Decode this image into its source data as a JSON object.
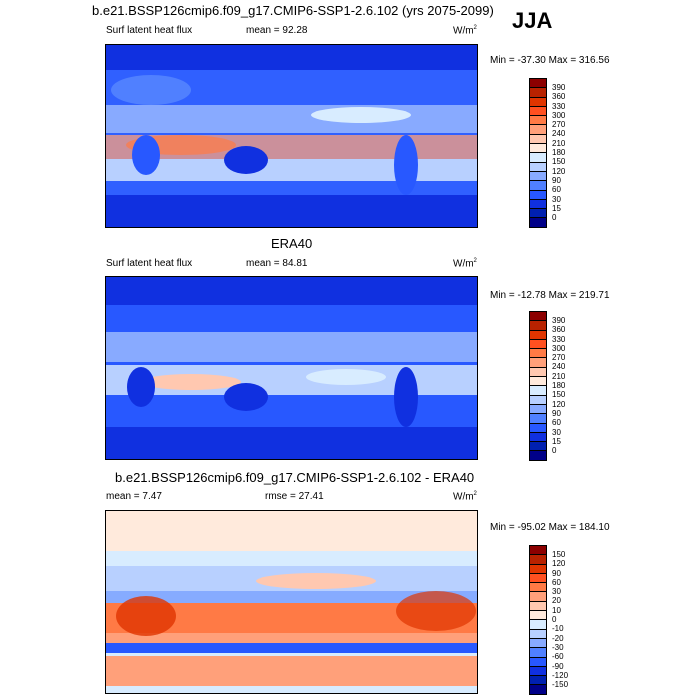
{
  "header": {
    "title": "b.e21.BSSP126cmip6.f09_g17.CMIP6-SSP1-2.6.102 (yrs 2075-2099)",
    "season": "JJA"
  },
  "panels": [
    {
      "title": "",
      "variable": "Surf latent heat flux",
      "stat": "mean =  92.28",
      "units": "W/m",
      "units_sup": "2",
      "minmax": "Min = -37.30 Max = 316.56",
      "scale": "abs"
    },
    {
      "title": "ERA40",
      "variable": "Surf latent heat flux",
      "stat": "mean =  84.81",
      "units": "W/m",
      "units_sup": "2",
      "minmax": "Min = -12.78 Max = 219.71",
      "scale": "abs"
    },
    {
      "title": "b.e21.BSSP126cmip6.f09_g17.CMIP6-SSP1-2.6.102 - ERA40",
      "variable": "mean =  7.47",
      "stat": "rmse =  27.41",
      "units": "W/m",
      "units_sup": "2",
      "minmax": "Min = -95.02 Max = 184.10",
      "scale": "diff"
    }
  ],
  "colorbars": {
    "abs": {
      "labels": [
        "390",
        "360",
        "330",
        "300",
        "270",
        "240",
        "210",
        "180",
        "150",
        "120",
        "90",
        "60",
        "30",
        "15",
        "0"
      ]
    },
    "diff": {
      "labels": [
        "150",
        "120",
        "90",
        "60",
        "30",
        "20",
        "10",
        "0",
        "-10",
        "-20",
        "-30",
        "-60",
        "-90",
        "-120",
        "-150"
      ]
    },
    "colors": [
      "#8c0000",
      "#b82200",
      "#e03500",
      "#ff5020",
      "#ff7a45",
      "#ffa07a",
      "#ffc8b0",
      "#ffeadc",
      "#d8ecff",
      "#b8d0ff",
      "#88aaff",
      "#5080ff",
      "#2858ff",
      "#1030e0",
      "#0020b0",
      "#000088"
    ]
  }
}
